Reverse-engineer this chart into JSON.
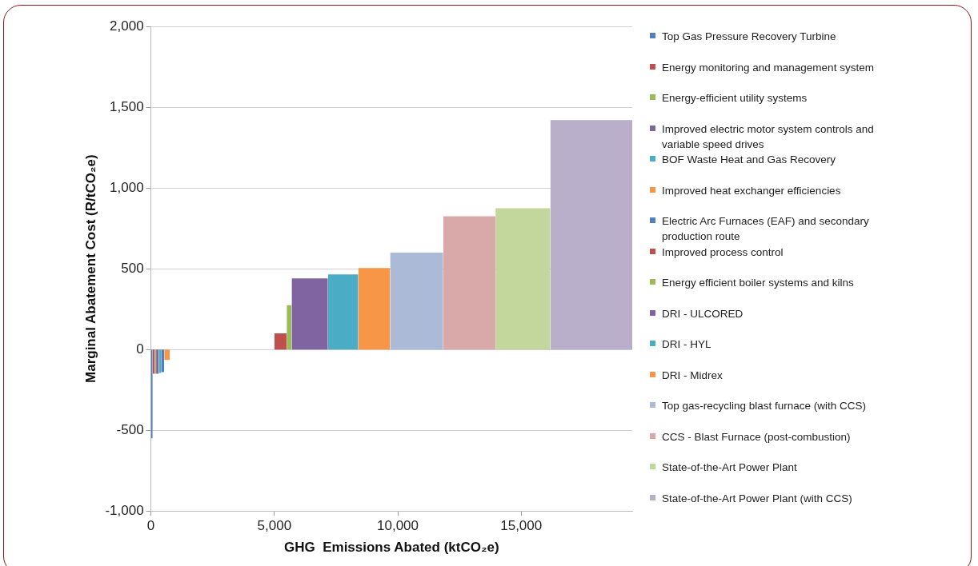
{
  "chart_data": {
    "type": "area",
    "xlabel": "GHG  Emissions Abated (ktCO₂e)",
    "ylabel": "Marginal Abatement Cost (R/tCO₂e)",
    "xlim": [
      0,
      19500
    ],
    "xticks": [
      {
        "value": 0,
        "label": "0"
      },
      {
        "value": 5000,
        "label": "5,000"
      },
      {
        "value": 10000,
        "label": "10,000"
      },
      {
        "value": 15000,
        "label": "15,000"
      }
    ],
    "ylim": [
      -1000,
      2000
    ],
    "yticks": [
      {
        "value": -1000,
        "label": "-1,000"
      },
      {
        "value": -500,
        "label": "-500"
      },
      {
        "value": 0,
        "label": "0"
      },
      {
        "value": 500,
        "label": "500"
      },
      {
        "value": 1000,
        "label": "1,000"
      },
      {
        "value": 1500,
        "label": "1,500"
      },
      {
        "value": 2000,
        "label": "2,000"
      }
    ],
    "grid": "y",
    "legend": "right",
    "marker": "none",
    "series": [
      {
        "name": "Top Gas Pressure Recovery Turbine",
        "color": "#4f81bd",
        "x": [
          0,
          0,
          70,
          70
        ],
        "values": [
          0,
          -550,
          -550,
          0
        ]
      },
      {
        "name": "Energy monitoring and management system",
        "color": "#c0504d",
        "x": [
          70,
          70,
          160,
          160
        ],
        "values": [
          0,
          -150,
          -150,
          0
        ]
      },
      {
        "name": "Energy-efficient utility systems",
        "color": "#9bbb59",
        "x": [
          160,
          160,
          210,
          210
        ],
        "values": [
          0,
          -150,
          -150,
          0
        ]
      },
      {
        "name": "Improved electric motor system controls and variable speed drives",
        "color": "#8064a2",
        "x": [
          210,
          210,
          320,
          320
        ],
        "values": [
          0,
          -150,
          -150,
          0
        ]
      },
      {
        "name": "BOF Waste Heat and Gas Recovery",
        "color": "#4bacc6",
        "x": [
          320,
          320,
          410,
          410
        ],
        "values": [
          0,
          -145,
          -145,
          0
        ]
      },
      {
        "name": "Improved heat exchanger efficiencies",
        "color": "#f79646",
        "x": [
          540,
          540,
          770,
          770
        ],
        "values": [
          0,
          -65,
          -65,
          0
        ]
      },
      {
        "name": "Electric Arc Furnaces (EAF) and secondary production route",
        "color": "#4f81bd",
        "x": [
          410,
          410,
          540,
          540
        ],
        "values": [
          0,
          -140,
          -140,
          0
        ]
      },
      {
        "name": "Improved process control",
        "color": "#c0504d",
        "x": [
          5000,
          5000,
          5500,
          5500
        ],
        "values": [
          0,
          100,
          100,
          0
        ]
      },
      {
        "name": "Energy efficient boiler systems and kilns",
        "color": "#9bbb59",
        "x": [
          5500,
          5500,
          5700,
          5700
        ],
        "values": [
          0,
          275,
          275,
          0
        ]
      },
      {
        "name": "DRI - ULCORED",
        "color": "#8064a2",
        "x": [
          5700,
          5700,
          7170,
          7170
        ],
        "values": [
          0,
          440,
          440,
          0
        ]
      },
      {
        "name": "DRI - HYL",
        "color": "#4bacc6",
        "x": [
          7170,
          7170,
          8400,
          8400
        ],
        "values": [
          0,
          465,
          465,
          0
        ]
      },
      {
        "name": "DRI - Midrex",
        "color": "#f79646",
        "x": [
          8400,
          8400,
          9690,
          9690
        ],
        "values": [
          0,
          505,
          505,
          0
        ]
      },
      {
        "name": "Top gas-recycling blast furnace (with CCS)",
        "color": "#aabad7",
        "x": [
          9690,
          9690,
          11840,
          11840
        ],
        "values": [
          0,
          600,
          600,
          0
        ]
      },
      {
        "name": "CCS - Blast Furnace (post-combustion)",
        "color": "#d9a9a9",
        "x": [
          11840,
          11840,
          13960,
          13960
        ],
        "values": [
          0,
          825,
          825,
          0
        ]
      },
      {
        "name": "State-of-the-Art Power Plant",
        "color": "#c3d69b",
        "x": [
          13960,
          13960,
          16180,
          16180
        ],
        "values": [
          0,
          875,
          875,
          0
        ]
      },
      {
        "name": "State-of-the-Art Power Plant (with CCS)",
        "color": "#b9afca",
        "x": [
          16180,
          16180,
          19500,
          19500
        ],
        "values": [
          0,
          1420,
          1420,
          0
        ]
      }
    ]
  }
}
